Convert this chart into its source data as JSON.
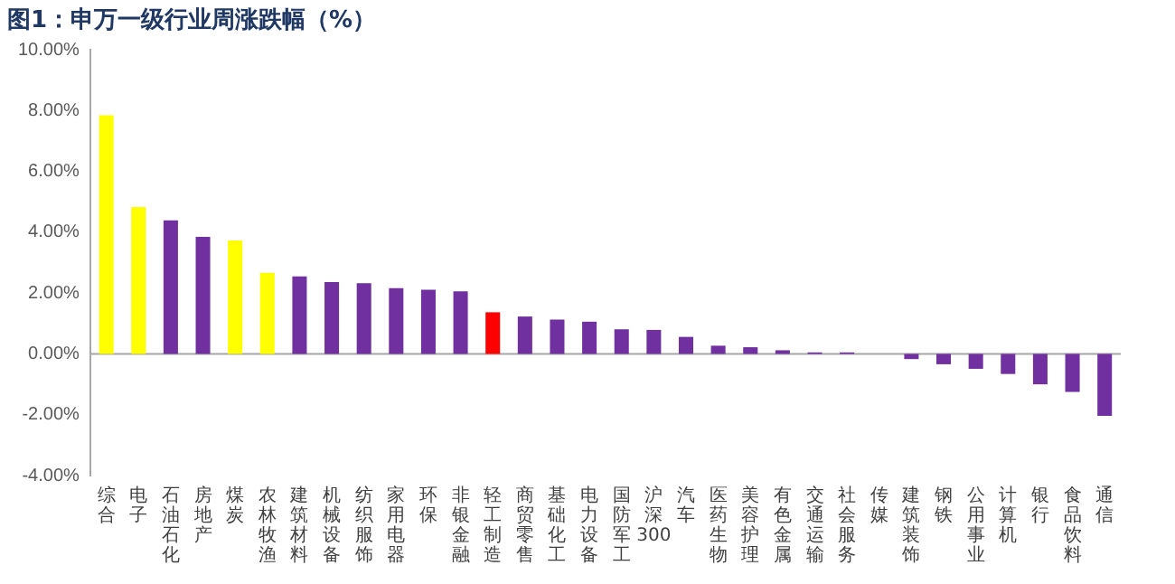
{
  "chart_data": {
    "type": "bar",
    "title": "图1：申万一级行业周涨跌幅（%）",
    "categories": [
      "综合",
      "电子",
      "石油石化",
      "房地产",
      "煤炭",
      "农林牧渔",
      "建筑材料",
      "机械设备",
      "纺织服饰",
      "家用电器",
      "环保",
      "非银金融",
      "轻工制造",
      "商贸零售",
      "基础化工",
      "电力设备",
      "国防军工",
      "沪深300",
      "汽车",
      "医药生物",
      "美容护理",
      "有色金属",
      "交通运输",
      "社会服务",
      "传媒",
      "建筑装饰",
      "钢铁",
      "公用事业",
      "计算机",
      "银行",
      "食品饮料",
      "通信"
    ],
    "values": [
      7.85,
      4.83,
      4.39,
      3.85,
      3.73,
      2.67,
      2.55,
      2.36,
      2.33,
      2.16,
      2.11,
      2.06,
      1.37,
      1.23,
      1.13,
      1.06,
      0.81,
      0.79,
      0.56,
      0.27,
      0.22,
      0.12,
      0.05,
      0.05,
      0,
      -0.17,
      -0.34,
      -0.49,
      -0.66,
      -1.0,
      -1.25,
      -2.04
    ],
    "colors": [
      "#ffff00",
      "#ffff00",
      "#7030a0",
      "#7030a0",
      "#ffff00",
      "#ffff00",
      "#7030a0",
      "#7030a0",
      "#7030a0",
      "#7030a0",
      "#7030a0",
      "#7030a0",
      "#ff0000",
      "#7030a0",
      "#7030a0",
      "#7030a0",
      "#7030a0",
      "#7030a0",
      "#7030a0",
      "#7030a0",
      "#7030a0",
      "#7030a0",
      "#7030a0",
      "#7030a0",
      "#7030a0",
      "#7030a0",
      "#7030a0",
      "#7030a0",
      "#7030a0",
      "#7030a0",
      "#7030a0",
      "#7030a0"
    ],
    "ylim": [
      -4,
      10
    ],
    "yticks": [
      {
        "value": -4,
        "label": "-4.00%"
      },
      {
        "value": -2,
        "label": "-2.00%"
      },
      {
        "value": 0,
        "label": "0.00%"
      },
      {
        "value": 2,
        "label": "2.00%"
      },
      {
        "value": 4,
        "label": "4.00%"
      },
      {
        "value": 6,
        "label": "6.00%"
      },
      {
        "value": 8,
        "label": "8.00%"
      },
      {
        "value": 10,
        "label": "10.00%"
      }
    ],
    "legend": false
  }
}
